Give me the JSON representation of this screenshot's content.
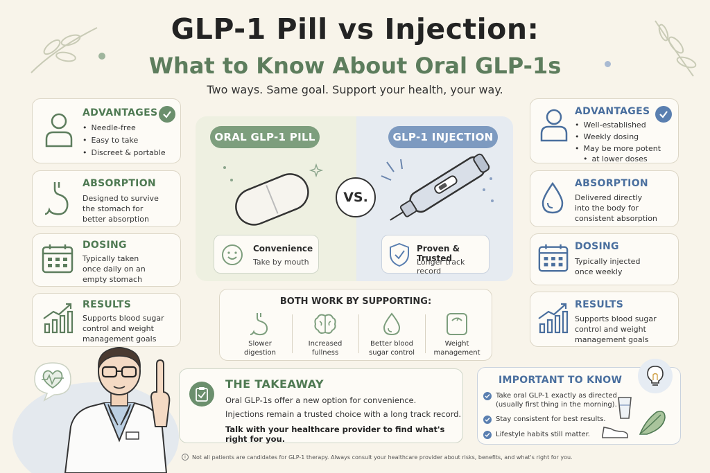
{
  "header": {
    "title": "GLP-1 Pill vs Injection:",
    "subtitle": "What to Know About Oral GLP-1s",
    "tagline": "Two ways. Same goal. Support your health, your way."
  },
  "colors": {
    "green_accent": "#5d7d5d",
    "blue_accent": "#4a6f9e",
    "background": "#f8f4ea"
  },
  "pill_side": {
    "label": "ORAL GLP-1 PILL",
    "feature_title": "Convenience",
    "feature_sub": "Take by mouth",
    "feature_icon": "smile-icon",
    "cards": [
      {
        "title": "ADVANTAGES",
        "icon": "person-icon",
        "bullets": [
          "Needle-free",
          "Easy to take",
          "Discreet & portable"
        ]
      },
      {
        "title": "ABSORPTION",
        "icon": "stomach-icon",
        "lines": [
          "Designed to survive",
          "the stomach for",
          "better absorption"
        ]
      },
      {
        "title": "DOSING",
        "icon": "calendar-icon",
        "lines": [
          "Typically taken",
          "once daily on an",
          "empty stomach"
        ]
      },
      {
        "title": "RESULTS",
        "icon": "chart-icon",
        "lines": [
          "Supports blood sugar",
          "control and weight",
          "management goals"
        ]
      }
    ]
  },
  "injection_side": {
    "label": "GLP-1 INJECTION",
    "feature_title": "Proven & Trusted",
    "feature_sub": "Longer track record",
    "feature_icon": "shield-icon",
    "cards": [
      {
        "title": "ADVANTAGES",
        "icon": "person-icon",
        "bullets": [
          "Well-established",
          "Weekly dosing",
          "May be more potent"
        ],
        "bullet_extra": "at lower doses"
      },
      {
        "title": "ABSORPTION",
        "icon": "drop-icon",
        "lines": [
          "Delivered directly",
          "into the body for",
          "consistent absorption"
        ]
      },
      {
        "title": "DOSING",
        "icon": "calendar-icon",
        "lines": [
          "Typically injected",
          "once weekly"
        ]
      },
      {
        "title": "RESULTS",
        "icon": "chart-icon",
        "lines": [
          "Supports blood sugar",
          "control and weight",
          "management goals"
        ]
      }
    ]
  },
  "vs_label": "VS.",
  "both": {
    "title": "BOTH WORK BY SUPPORTING:",
    "items": [
      {
        "icon": "stomach-icon",
        "lines": [
          "Slower",
          "digestion"
        ]
      },
      {
        "icon": "brain-icon",
        "lines": [
          "Increased",
          "fullness"
        ]
      },
      {
        "icon": "drop-icon",
        "lines": [
          "Better blood",
          "sugar control"
        ]
      },
      {
        "icon": "scale-icon",
        "lines": [
          "Weight",
          "management"
        ]
      }
    ]
  },
  "takeaway": {
    "title": "THE TAKEAWAY",
    "lines": [
      "Oral GLP-1s offer a new option for convenience.",
      "Injections remain a trusted choice with a long track record."
    ],
    "emphasis": "Talk with your healthcare provider to find what's right for you."
  },
  "important": {
    "title": "IMPORTANT TO KNOW",
    "items": [
      [
        "Take oral GLP-1 exactly as directed",
        "(usually first thing in the morning)."
      ],
      [
        "Stay consistent for best results."
      ],
      [
        "Lifestyle habits still matter."
      ]
    ]
  },
  "disclaimer": "Not all patients are candidates for GLP-1 therapy. Always consult your healthcare provider about risks, benefits, and what's right for you."
}
